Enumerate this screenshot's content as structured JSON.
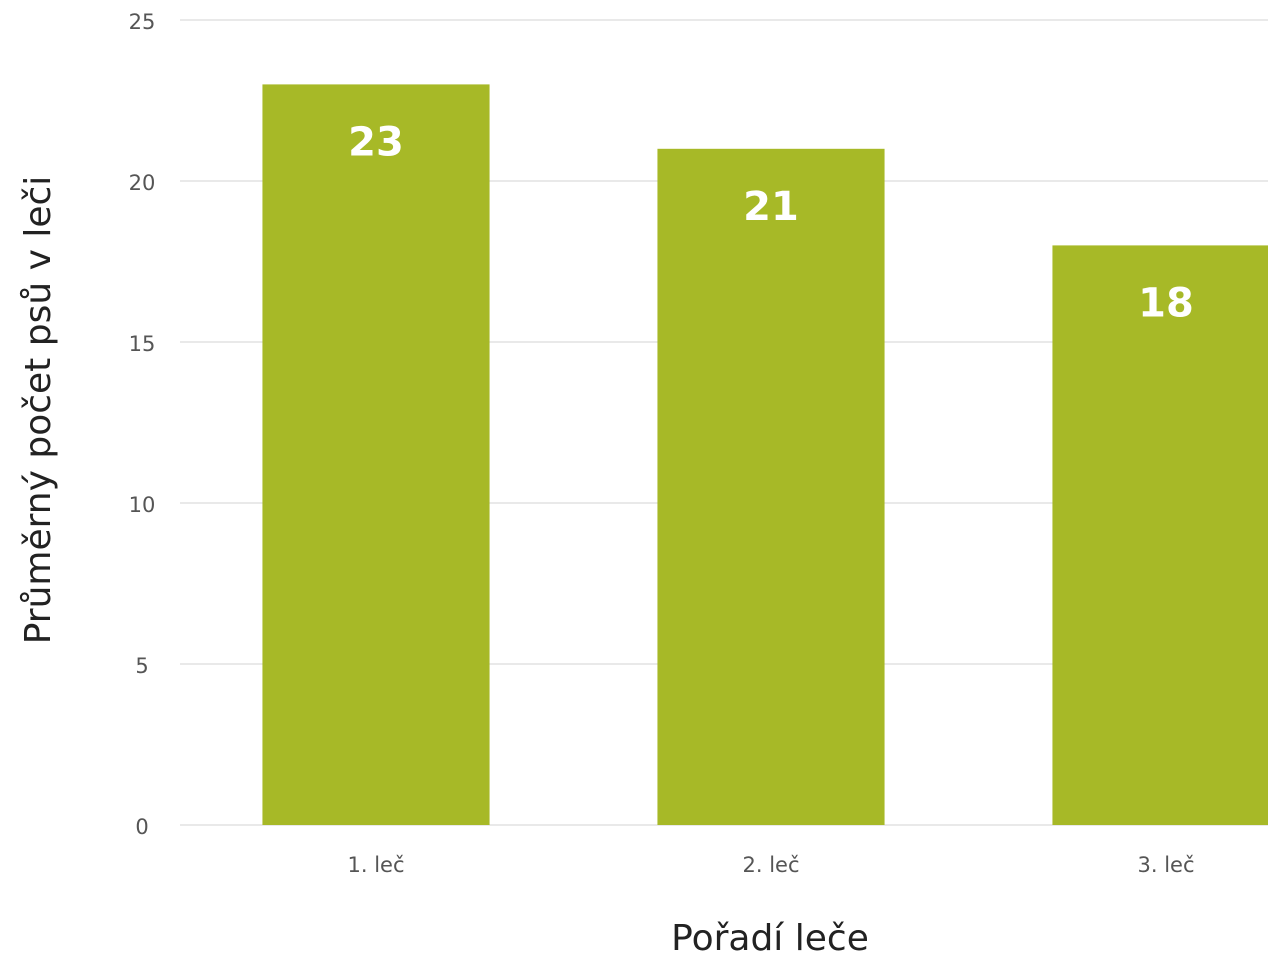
{
  "chart_data": {
    "type": "bar",
    "categories": [
      "1. leč",
      "2. leč",
      "3. leč"
    ],
    "values": [
      23,
      21,
      18
    ],
    "color": "#a7b927",
    "xlabel": "Pořadí leče",
    "ylabel": "Průměrný počet psů v leči",
    "ylim": [
      0,
      25
    ],
    "yticks": [
      0,
      5,
      10,
      15,
      20,
      25
    ],
    "grid": true
  }
}
